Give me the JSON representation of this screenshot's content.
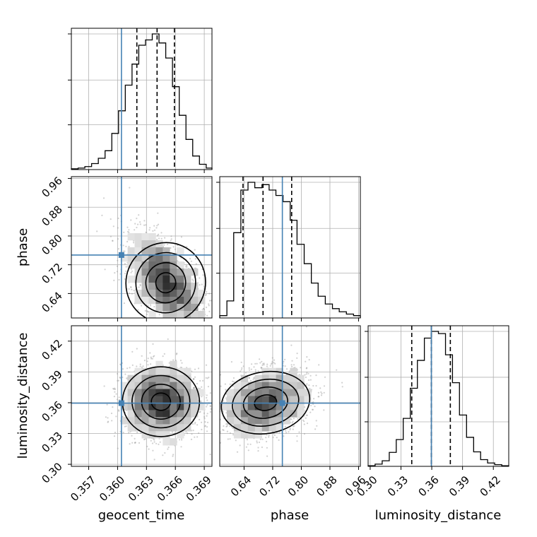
{
  "chart_data": {
    "type": "corner",
    "parameters": [
      {
        "name": "geocent_time",
        "label": "geocent_time",
        "range": [
          0.3552,
          0.3698
        ],
        "ticks": [
          0.357,
          0.36,
          0.363,
          0.366,
          0.369
        ],
        "tick_labels": [
          "0.357",
          "0.360",
          "0.363",
          "0.366",
          "0.369"
        ],
        "truth": 0.3604,
        "quantiles": [
          0.362,
          0.3641,
          0.3659
        ]
      },
      {
        "name": "phase",
        "label": "phase",
        "range": [
          0.572,
          0.965
        ],
        "ticks": [
          0.64,
          0.72,
          0.8,
          0.88,
          0.96
        ],
        "tick_labels": [
          "0.64",
          "0.72",
          "0.80",
          "0.88",
          "0.96"
        ],
        "truth": 0.747,
        "quantiles": [
          0.637,
          0.693,
          0.773
        ]
      },
      {
        "name": "luminosity_distance",
        "label": "luminosity_distance",
        "range": [
          0.298,
          0.435
        ],
        "ticks": [
          0.3,
          0.33,
          0.36,
          0.39,
          0.42
        ],
        "tick_labels": [
          "0.30",
          "0.33",
          "0.36",
          "0.39",
          "0.42"
        ],
        "truth": 0.3596,
        "quantiles": [
          0.3405,
          0.3596,
          0.3781
        ]
      }
    ],
    "histograms": [
      {
        "parameter": "geocent_time",
        "bin_edges": [
          0.3552,
          0.3559,
          0.3566,
          0.3573,
          0.358,
          0.3587,
          0.3594,
          0.3601,
          0.3608,
          0.3615,
          0.3622,
          0.3629,
          0.3636,
          0.3643,
          0.365,
          0.3657,
          0.3664,
          0.3671,
          0.3678,
          0.3685,
          0.3692,
          0.3698
        ],
        "counts": [
          1,
          2,
          4,
          8,
          15,
          25,
          48,
          78,
          112,
          140,
          165,
          172,
          180,
          168,
          148,
          110,
          72,
          40,
          18,
          7,
          2
        ]
      },
      {
        "parameter": "phase",
        "bin_edges": [
          0.572,
          0.592,
          0.611,
          0.631,
          0.651,
          0.67,
          0.69,
          0.71,
          0.729,
          0.749,
          0.769,
          0.788,
          0.808,
          0.828,
          0.847,
          0.867,
          0.887,
          0.906,
          0.926,
          0.946,
          0.965
        ],
        "counts": [
          3,
          22,
          110,
          165,
          175,
          168,
          172,
          165,
          158,
          150,
          126,
          95,
          70,
          45,
          28,
          18,
          12,
          8,
          5,
          3
        ]
      },
      {
        "parameter": "luminosity_distance",
        "bin_edges": [
          0.298,
          0.3048,
          0.3117,
          0.3186,
          0.3254,
          0.3322,
          0.3391,
          0.346,
          0.3528,
          0.3596,
          0.3665,
          0.3734,
          0.3802,
          0.387,
          0.3939,
          0.4008,
          0.4076,
          0.4144,
          0.4213,
          0.4282,
          0.435
        ],
        "counts": [
          1,
          4,
          10,
          25,
          48,
          86,
          140,
          190,
          230,
          242,
          238,
          200,
          150,
          92,
          52,
          26,
          12,
          6,
          3,
          1
        ]
      }
    ],
    "scatter_pairs": [
      {
        "x": "geocent_time",
        "y": "phase",
        "center": [
          0.365,
          0.67
        ],
        "spread": [
          0.0019,
          0.065
        ],
        "correlation": -0.55
      },
      {
        "x": "geocent_time",
        "y": "luminosity_distance",
        "center": [
          0.3645,
          0.361
        ],
        "spread": [
          0.002,
          0.017
        ],
        "correlation": 0.0
      },
      {
        "x": "phase",
        "y": "luminosity_distance",
        "center": [
          0.7,
          0.36
        ],
        "spread": [
          0.06,
          0.016
        ],
        "correlation": 0.25
      }
    ],
    "truth_color": "#4682b4",
    "quantile_line_style": "dashed",
    "grid": true,
    "legend": "none"
  }
}
